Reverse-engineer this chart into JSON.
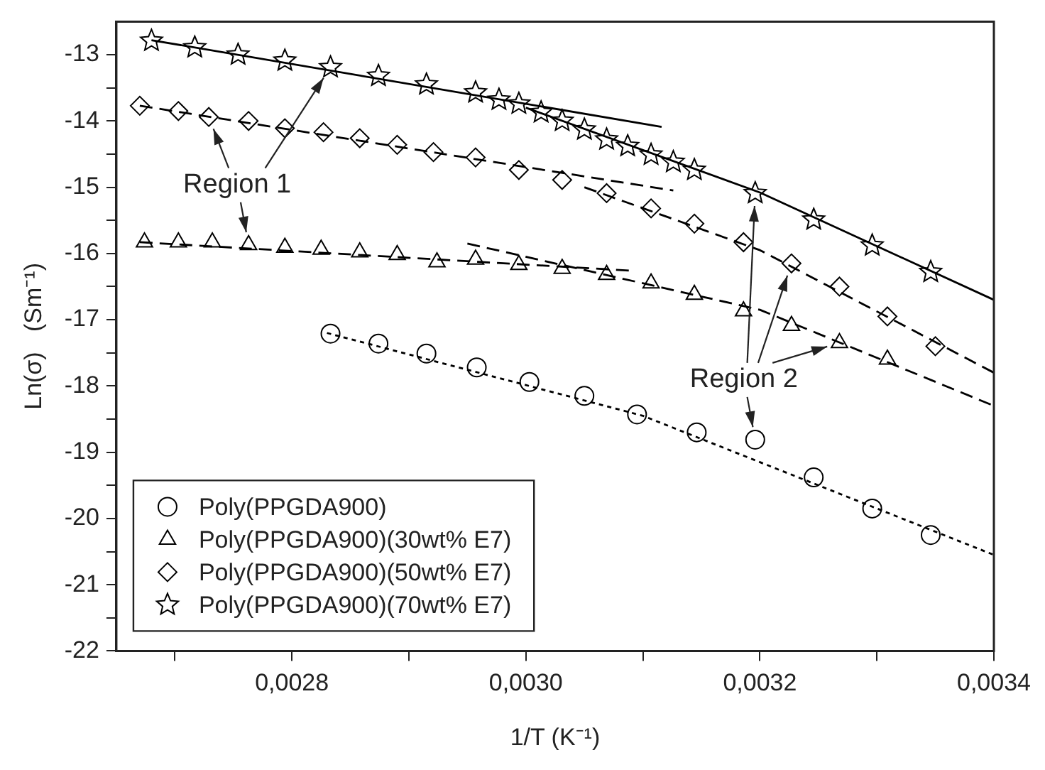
{
  "chart_data": {
    "type": "scatter",
    "xlabel": "1/T (K⁻¹)",
    "ylabel": "Ln(σ)   (Sm⁻¹)",
    "xlim": [
      0.00265,
      0.0034
    ],
    "ylim": [
      -22,
      -12.5
    ],
    "xticks": [
      {
        "value": 0.0027,
        "label": null
      },
      {
        "value": 0.0028,
        "label": "0,0028"
      },
      {
        "value": 0.0029,
        "label": null
      },
      {
        "value": 0.003,
        "label": "0,0030"
      },
      {
        "value": 0.0031,
        "label": null
      },
      {
        "value": 0.0032,
        "label": "0,0032"
      },
      {
        "value": 0.0033,
        "label": null
      },
      {
        "value": 0.0034,
        "label": "0,0034"
      }
    ],
    "yticks": [
      -13,
      {
        "value": -13.5,
        "label": null
      },
      -14,
      {
        "value": -14.5,
        "label": null
      },
      -15,
      {
        "value": -15.5,
        "label": null
      },
      -16,
      {
        "value": -16.5,
        "label": null
      },
      -17,
      {
        "value": -17.5,
        "label": null
      },
      -18,
      {
        "value": -18.5,
        "label": null
      },
      -19,
      {
        "value": -19.5,
        "label": null
      },
      -20,
      {
        "value": -20.5,
        "label": null
      },
      -21,
      {
        "value": -21.5,
        "label": null
      },
      -22
    ],
    "grid": false,
    "legend": "bottom left",
    "annotations": [
      {
        "text": "Region 1",
        "x": 0.002763,
        "y": -15.87
      },
      {
        "text": "Region 2",
        "x": 0.003196,
        "y": -18.81
      }
    ],
    "series": [
      {
        "name": "Poly(PPGDA900)",
        "type": "scatter",
        "marker": "circle",
        "color": "#000000",
        "x": [
          0.002833,
          0.002874,
          0.002915,
          0.002958,
          0.003003,
          0.00305,
          0.003095,
          0.003146,
          0.003196,
          0.003246,
          0.003296,
          0.003346
        ],
        "values": [
          -17.21,
          -17.36,
          -17.51,
          -17.72,
          -17.94,
          -18.15,
          -18.43,
          -18.7,
          -18.81,
          -19.38,
          -19.85,
          -20.25
        ]
      },
      {
        "name": "Poly(PPGDA900)(30wt% E7)",
        "type": "scatter",
        "marker": "triangle",
        "color": "#000000",
        "x": [
          0.002674,
          0.002703,
          0.002732,
          0.002763,
          0.002794,
          0.002825,
          0.002858,
          0.00289,
          0.002924,
          0.002957,
          0.002994,
          0.003031,
          0.003069,
          0.003107,
          0.003144,
          0.003186,
          0.003227,
          0.003268,
          0.003309
        ],
        "values": [
          -15.83,
          -15.83,
          -15.83,
          -15.87,
          -15.91,
          -15.94,
          -15.98,
          -16.02,
          -16.13,
          -16.09,
          -16.17,
          -16.23,
          -16.32,
          -16.45,
          -16.62,
          -16.87,
          -17.09,
          -17.35,
          -17.6
        ]
      },
      {
        "name": "Poly(PPGDA900)(50wt% E7)",
        "type": "scatter",
        "marker": "diamond",
        "color": "#000000",
        "x": [
          0.00267,
          0.002703,
          0.002729,
          0.002763,
          0.002794,
          0.002827,
          0.002858,
          0.00289,
          0.002921,
          0.002957,
          0.002994,
          0.003031,
          0.003069,
          0.003107,
          0.003144,
          0.003186,
          0.003227,
          0.003268,
          0.003309,
          0.00335
        ],
        "values": [
          -13.77,
          -13.85,
          -13.94,
          -14.0,
          -14.11,
          -14.17,
          -14.26,
          -14.36,
          -14.47,
          -14.55,
          -14.74,
          -14.89,
          -15.09,
          -15.32,
          -15.55,
          -15.83,
          -16.15,
          -16.5,
          -16.95,
          -17.4
        ]
      },
      {
        "name": "Poly(PPGDA900)(70wt% E7)",
        "type": "scatter",
        "marker": "star",
        "color": "#000000",
        "x": [
          0.00268,
          0.002717,
          0.002754,
          0.002794,
          0.002833,
          0.002874,
          0.002915,
          0.002957,
          0.002977,
          0.002994,
          0.003013,
          0.003031,
          0.00305,
          0.003069,
          0.003087,
          0.003107,
          0.003126,
          0.003144,
          0.003196,
          0.003246,
          0.003296,
          0.003346
        ],
        "values": [
          -12.79,
          -12.89,
          -13.0,
          -13.09,
          -13.19,
          -13.32,
          -13.45,
          -13.57,
          -13.68,
          -13.74,
          -13.87,
          -14.0,
          -14.13,
          -14.28,
          -14.38,
          -14.51,
          -14.62,
          -14.74,
          -15.09,
          -15.49,
          -15.88,
          -16.28
        ]
      },
      {
        "type": "line",
        "marker": "none",
        "line_style": "dotted",
        "color": "#000000",
        "x": [
          0.00283,
          0.0031,
          0.0034
        ],
        "values": [
          -17.2,
          -18.45,
          -20.55
        ]
      },
      {
        "type": "line",
        "marker": "none",
        "line_style": "dashed",
        "color": "#000000",
        "x": [
          0.00267,
          0.00309
        ],
        "values": [
          -15.83,
          -16.26
        ]
      },
      {
        "type": "line",
        "marker": "none",
        "line_style": "dashed",
        "color": "#000000",
        "x": [
          0.00295,
          0.0032,
          0.0034
        ],
        "values": [
          -15.85,
          -16.85,
          -18.3
        ]
      },
      {
        "type": "line",
        "marker": "none",
        "line_style": "dashed",
        "color": "#000000",
        "x": [
          0.00267,
          0.003126
        ],
        "values": [
          -13.77,
          -15.05
        ]
      },
      {
        "type": "line",
        "marker": "none",
        "line_style": "dashed",
        "color": "#000000",
        "x": [
          0.00305,
          0.0032,
          0.0034
        ],
        "values": [
          -15.0,
          -15.95,
          -17.8
        ]
      },
      {
        "type": "line",
        "marker": "none",
        "line_style": "solid",
        "color": "#000000",
        "x": [
          0.00268,
          0.003116
        ],
        "values": [
          -12.78,
          -14.09
        ]
      },
      {
        "type": "line",
        "marker": "none",
        "line_style": "solid",
        "color": "#000000",
        "x": [
          0.003,
          0.0032,
          0.0034
        ],
        "values": [
          -13.8,
          -15.08,
          -16.7
        ]
      }
    ]
  }
}
